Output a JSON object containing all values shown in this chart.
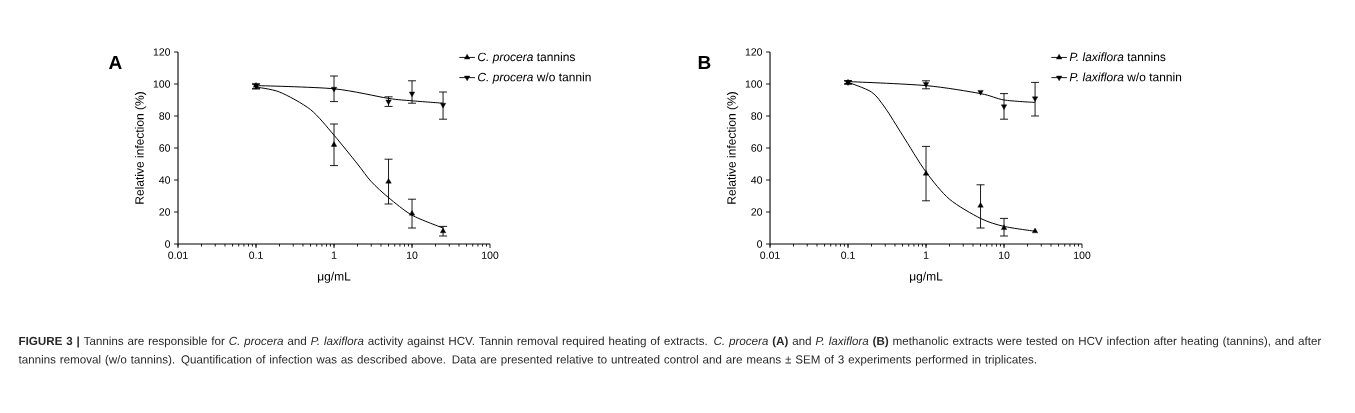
{
  "chart_data": [
    {
      "type": "scatter",
      "title": "A",
      "xlabel": "μg/mL",
      "ylabel": "Relative infection (%)",
      "log": "x",
      "xlim": [
        0.01,
        100
      ],
      "xticks": [
        0.01,
        0.1,
        1,
        10,
        100
      ],
      "ylim": [
        0,
        120
      ],
      "yticks": [
        0,
        20,
        40,
        60,
        80,
        100,
        120
      ],
      "legend": "top right",
      "annotations": [
        "**FIGURE 3 |** Tannins are responsible for *C. procera* and *P. laxiflora* activity against HCV. Tannin removal required heating of extracts. *C. procera* **(A)** and *P. laxiflora* **(B)** methanolic extracts were tested on HCV infection after heating (tannins), and after tannins removal (w/o tannins). Quantification of infection was as described above. Data are presented relative to untreated control and are means ± SEM of 3 experiments performed in triplicates."
      ],
      "series": [
        {
          "name": "*C. procera* tannins",
          "color": "#000000",
          "marker": "triangle",
          "x": [
            0.1,
            1,
            5,
            10,
            25
          ],
          "values": [
            99,
            62,
            39,
            19,
            8
          ],
          "errors": [
            [
              97,
              100
            ],
            [
              49,
              75
            ],
            [
              25,
              53
            ],
            [
              10,
              28
            ],
            [
              5,
              11
            ]
          ]
        },
        {
          "name": "*C. procera* w/o tannin",
          "color": "#000000",
          "marker": "triangle-down",
          "x": [
            0.1,
            1,
            5,
            10,
            25
          ],
          "values": [
            99,
            97,
            89,
            94,
            87
          ],
          "errors": [
            [
              97,
              100
            ],
            [
              89,
              105
            ],
            [
              86,
              92
            ],
            [
              88,
              102
            ],
            [
              78,
              95
            ]
          ]
        },
        {
          "type": "line",
          "color": "#000000",
          "x": [
            0.1,
            0.2,
            0.5,
            1,
            2,
            3,
            5,
            10,
            25
          ],
          "values": [
            98,
            95,
            84,
            68,
            50,
            39,
            29,
            18,
            10
          ]
        },
        {
          "type": "line",
          "color": "#000000",
          "x": [
            0.1,
            1,
            5,
            10,
            25
          ],
          "values": [
            99,
            97,
            91,
            89.5,
            88
          ]
        }
      ]
    },
    {
      "type": "scatter",
      "title": "B",
      "xlabel": "μg/mL",
      "ylabel": "Relative infection (%)",
      "log": "x",
      "xlim": [
        0.01,
        100
      ],
      "xticks": [
        0.01,
        0.1,
        1,
        10,
        100
      ],
      "ylim": [
        0,
        120
      ],
      "yticks": [
        0,
        20,
        40,
        60,
        80,
        100,
        120
      ],
      "legend": "top right",
      "series": [
        {
          "name": "*P. laxiflora* tannins",
          "color": "#000000",
          "marker": "triangle",
          "x": [
            0.1,
            1,
            5,
            10,
            25
          ],
          "values": [
            101,
            44,
            24,
            10,
            8
          ],
          "errors": [
            [
              100,
              102
            ],
            [
              27,
              61
            ],
            [
              10,
              37
            ],
            [
              5,
              16
            ],
            null
          ]
        },
        {
          "name": "*P. laxiflora* w/o tannin",
          "color": "#000000",
          "marker": "triangle-down",
          "x": [
            0.1,
            1,
            5,
            10,
            25
          ],
          "values": [
            101,
            100,
            95,
            86,
            91
          ],
          "errors": [
            [
              100,
              102
            ],
            [
              97,
              102
            ],
            null,
            [
              78,
              94
            ],
            [
              80,
              101
            ]
          ]
        },
        {
          "type": "line",
          "color": "#000000",
          "x": [
            0.1,
            0.2,
            0.3,
            0.5,
            1,
            2,
            5,
            10,
            25
          ],
          "values": [
            101,
            95,
            85,
            68,
            45,
            28,
            16,
            11,
            8
          ]
        },
        {
          "type": "line",
          "color": "#000000",
          "x": [
            0.1,
            1,
            5,
            10,
            25
          ],
          "values": [
            101.5,
            99,
            94,
            90,
            88.5
          ]
        }
      ]
    }
  ]
}
